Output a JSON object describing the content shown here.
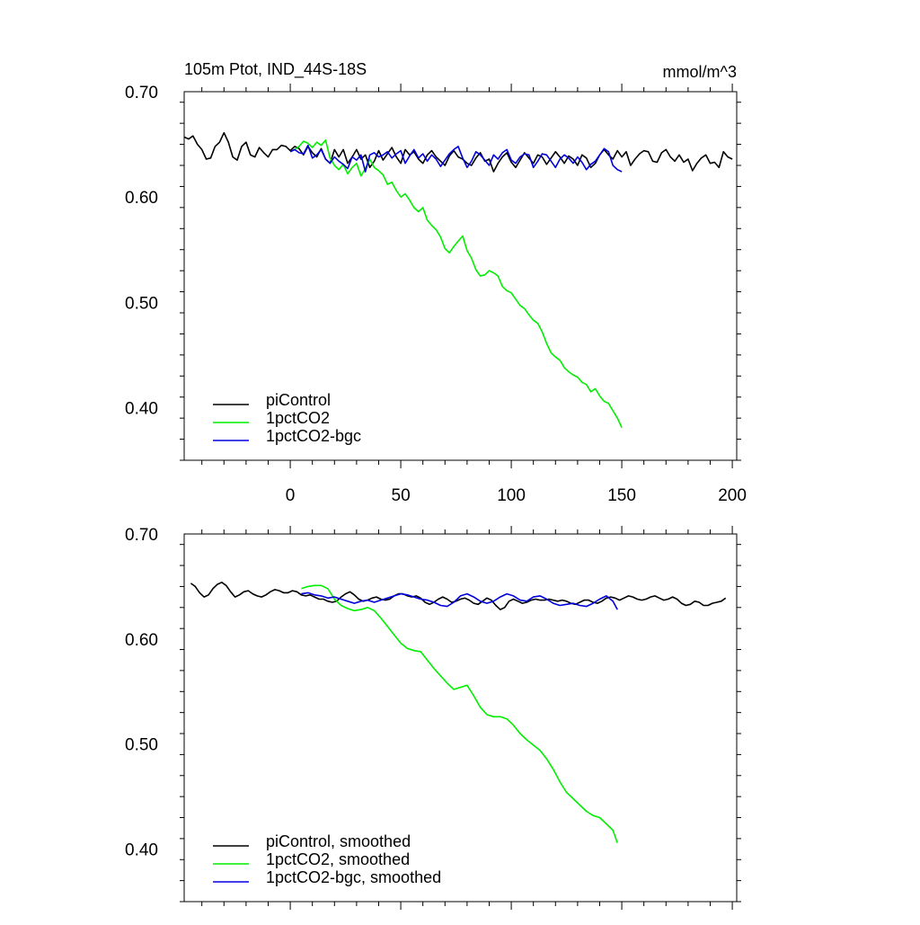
{
  "header": {
    "title": "105m Ptot, IND_44S-18S",
    "units": "mmol/m^3"
  },
  "colors": {
    "piControl": "#000000",
    "1pctCO2": "#00ee00",
    "1pctCO2-bgc": "#0000dd"
  },
  "chart_data": [
    {
      "type": "line",
      "title": "105m Ptot, IND_44S-18S",
      "units": "mmol/m^3",
      "xlim": [
        -48,
        202
      ],
      "ylim": [
        0.35,
        0.7
      ],
      "xticks": [
        0,
        50,
        100,
        150,
        200
      ],
      "xtick_labels": [
        "0",
        "50",
        "100",
        "150",
        "200"
      ],
      "yticks": [
        0.4,
        0.5,
        0.6,
        0.7
      ],
      "ytick_labels": [
        "0.40",
        "0.50",
        "0.60",
        "0.70"
      ],
      "show_x_tick_labels": true,
      "legend_placement": "bottom-left",
      "series": [
        {
          "name": "piControl",
          "color": "#000000",
          "x": [
            -48,
            -46,
            -44,
            -42,
            -40,
            -38,
            -36,
            -34,
            -32,
            -30,
            -28,
            -26,
            -24,
            -22,
            -20,
            -18,
            -16,
            -14,
            -12,
            -10,
            -8,
            -6,
            -4,
            -2,
            0,
            2,
            4,
            6,
            8,
            10,
            12,
            14,
            16,
            18,
            20,
            22,
            24,
            26,
            28,
            30,
            32,
            34,
            36,
            38,
            40,
            42,
            44,
            46,
            48,
            50,
            52,
            54,
            56,
            58,
            60,
            62,
            64,
            66,
            68,
            70,
            72,
            74,
            76,
            78,
            80,
            82,
            84,
            86,
            88,
            90,
            92,
            94,
            96,
            98,
            100,
            102,
            104,
            106,
            108,
            110,
            112,
            114,
            116,
            118,
            120,
            122,
            124,
            126,
            128,
            130,
            132,
            134,
            136,
            138,
            140,
            142,
            144,
            146,
            148,
            150,
            152,
            154,
            156,
            158,
            160,
            162,
            164,
            166,
            168,
            170,
            172,
            174,
            176,
            178,
            180,
            182,
            184,
            186,
            188,
            190,
            192,
            194,
            196,
            198,
            200
          ],
          "y": [
            0.657,
            0.655,
            0.658,
            0.65,
            0.645,
            0.636,
            0.637,
            0.648,
            0.652,
            0.661,
            0.652,
            0.638,
            0.635,
            0.648,
            0.652,
            0.64,
            0.638,
            0.647,
            0.642,
            0.638,
            0.645,
            0.645,
            0.649,
            0.648,
            0.644,
            0.648,
            0.646,
            0.64,
            0.648,
            0.642,
            0.638,
            0.646,
            0.636,
            0.632,
            0.645,
            0.638,
            0.645,
            0.632,
            0.638,
            0.645,
            0.636,
            0.64,
            0.628,
            0.634,
            0.644,
            0.635,
            0.641,
            0.647,
            0.638,
            0.632,
            0.645,
            0.64,
            0.643,
            0.636,
            0.632,
            0.64,
            0.644,
            0.638,
            0.634,
            0.63,
            0.639,
            0.644,
            0.638,
            0.636,
            0.632,
            0.63,
            0.637,
            0.642,
            0.634,
            0.636,
            0.624,
            0.632,
            0.638,
            0.642,
            0.633,
            0.628,
            0.635,
            0.642,
            0.637,
            0.632,
            0.64,
            0.638,
            0.631,
            0.637,
            0.643,
            0.638,
            0.632,
            0.639,
            0.636,
            0.63,
            0.64,
            0.637,
            0.628,
            0.632,
            0.64,
            0.645,
            0.64,
            0.636,
            0.644,
            0.638,
            0.643,
            0.63,
            0.636,
            0.641,
            0.644,
            0.643,
            0.634,
            0.633,
            0.642,
            0.645,
            0.638,
            0.634,
            0.64,
            0.633,
            0.636,
            0.625,
            0.632,
            0.637,
            0.64,
            0.632,
            0.633,
            0.628,
            0.643,
            0.638,
            0.636
          ]
        },
        {
          "name": "1pctCO2",
          "color": "#00ee00",
          "x": [
            0,
            2,
            4,
            6,
            8,
            10,
            12,
            14,
            16,
            18,
            20,
            22,
            24,
            26,
            28,
            30,
            32,
            34,
            36,
            38,
            40,
            42,
            44,
            46,
            48,
            50,
            52,
            54,
            56,
            58,
            60,
            62,
            64,
            66,
            68,
            70,
            72,
            74,
            76,
            78,
            80,
            82,
            84,
            86,
            88,
            90,
            92,
            94,
            96,
            98,
            100,
            102,
            104,
            106,
            108,
            110,
            112,
            114,
            116,
            118,
            120,
            122,
            124,
            126,
            128,
            130,
            132,
            134,
            136,
            138,
            140,
            142,
            144,
            146,
            148,
            150
          ],
          "y": [
            0.643,
            0.645,
            0.648,
            0.653,
            0.651,
            0.647,
            0.652,
            0.649,
            0.654,
            0.637,
            0.63,
            0.626,
            0.631,
            0.622,
            0.628,
            0.632,
            0.62,
            0.627,
            0.636,
            0.628,
            0.625,
            0.621,
            0.612,
            0.614,
            0.606,
            0.6,
            0.603,
            0.597,
            0.59,
            0.586,
            0.59,
            0.578,
            0.573,
            0.569,
            0.562,
            0.551,
            0.547,
            0.553,
            0.558,
            0.563,
            0.549,
            0.542,
            0.531,
            0.525,
            0.526,
            0.53,
            0.528,
            0.525,
            0.515,
            0.511,
            0.509,
            0.503,
            0.497,
            0.494,
            0.488,
            0.483,
            0.48,
            0.472,
            0.461,
            0.452,
            0.448,
            0.445,
            0.438,
            0.434,
            0.431,
            0.429,
            0.424,
            0.422,
            0.415,
            0.418,
            0.411,
            0.406,
            0.404,
            0.397,
            0.39,
            0.381
          ]
        },
        {
          "name": "1pctCO2-bgc",
          "color": "#0000dd",
          "x": [
            0,
            2,
            4,
            6,
            8,
            10,
            12,
            14,
            16,
            18,
            20,
            22,
            24,
            26,
            28,
            30,
            32,
            34,
            36,
            38,
            40,
            42,
            44,
            46,
            48,
            50,
            52,
            54,
            56,
            58,
            60,
            62,
            64,
            66,
            68,
            70,
            72,
            74,
            76,
            78,
            80,
            82,
            84,
            86,
            88,
            90,
            92,
            94,
            96,
            98,
            100,
            102,
            104,
            106,
            108,
            110,
            112,
            114,
            116,
            118,
            120,
            122,
            124,
            126,
            128,
            130,
            132,
            134,
            136,
            138,
            140,
            142,
            144,
            146,
            148,
            150
          ],
          "y": [
            0.643,
            0.645,
            0.642,
            0.641,
            0.649,
            0.637,
            0.64,
            0.645,
            0.636,
            0.632,
            0.638,
            0.634,
            0.631,
            0.627,
            0.638,
            0.635,
            0.64,
            0.624,
            0.64,
            0.642,
            0.638,
            0.64,
            0.643,
            0.637,
            0.641,
            0.644,
            0.632,
            0.639,
            0.645,
            0.637,
            0.641,
            0.634,
            0.64,
            0.636,
            0.629,
            0.635,
            0.641,
            0.645,
            0.648,
            0.637,
            0.628,
            0.634,
            0.643,
            0.64,
            0.635,
            0.63,
            0.64,
            0.636,
            0.642,
            0.645,
            0.635,
            0.632,
            0.638,
            0.641,
            0.64,
            0.628,
            0.634,
            0.641,
            0.64,
            0.634,
            0.628,
            0.636,
            0.64,
            0.637,
            0.632,
            0.638,
            0.633,
            0.626,
            0.631,
            0.634,
            0.64,
            0.646,
            0.643,
            0.63,
            0.626,
            0.624
          ]
        }
      ]
    },
    {
      "type": "line",
      "title": "",
      "units": "",
      "xlim": [
        -48,
        202
      ],
      "ylim": [
        0.35,
        0.7
      ],
      "xticks": [
        0,
        50,
        100,
        150,
        200
      ],
      "xtick_labels": [],
      "yticks": [
        0.4,
        0.5,
        0.6,
        0.7
      ],
      "ytick_labels": [
        "0.40",
        "0.50",
        "0.60",
        "0.70"
      ],
      "show_x_tick_labels": false,
      "legend_placement": "bottom-left",
      "series": [
        {
          "name": "piControl, smoothed",
          "color": "#000000",
          "x": [
            -45,
            -43,
            -41,
            -39,
            -37,
            -35,
            -33,
            -31,
            -29,
            -27,
            -25,
            -23,
            -21,
            -19,
            -17,
            -15,
            -13,
            -11,
            -9,
            -7,
            -5,
            -3,
            -1,
            1,
            3,
            5,
            7,
            9,
            11,
            13,
            15,
            17,
            19,
            21,
            23,
            25,
            27,
            29,
            31,
            33,
            35,
            37,
            39,
            41,
            43,
            45,
            47,
            49,
            51,
            53,
            55,
            57,
            59,
            61,
            63,
            65,
            67,
            69,
            71,
            73,
            75,
            77,
            79,
            81,
            83,
            85,
            87,
            89,
            91,
            93,
            95,
            97,
            99,
            101,
            103,
            105,
            107,
            109,
            111,
            113,
            115,
            117,
            119,
            121,
            123,
            125,
            127,
            129,
            131,
            133,
            135,
            137,
            139,
            141,
            143,
            145,
            147,
            149,
            151,
            153,
            155,
            157,
            159,
            161,
            163,
            165,
            167,
            169,
            171,
            173,
            175,
            177,
            179,
            181,
            183,
            185,
            187,
            189,
            191,
            193,
            195,
            197
          ],
          "y": [
            0.653,
            0.65,
            0.644,
            0.64,
            0.642,
            0.648,
            0.652,
            0.654,
            0.651,
            0.645,
            0.64,
            0.642,
            0.645,
            0.646,
            0.643,
            0.641,
            0.64,
            0.642,
            0.645,
            0.647,
            0.646,
            0.644,
            0.644,
            0.646,
            0.645,
            0.642,
            0.641,
            0.642,
            0.64,
            0.638,
            0.638,
            0.636,
            0.635,
            0.636,
            0.64,
            0.643,
            0.645,
            0.642,
            0.638,
            0.636,
            0.637,
            0.639,
            0.64,
            0.638,
            0.637,
            0.638,
            0.641,
            0.643,
            0.643,
            0.641,
            0.64,
            0.641,
            0.639,
            0.635,
            0.633,
            0.635,
            0.638,
            0.64,
            0.638,
            0.635,
            0.636,
            0.638,
            0.639,
            0.637,
            0.634,
            0.633,
            0.636,
            0.639,
            0.637,
            0.632,
            0.628,
            0.63,
            0.636,
            0.638,
            0.636,
            0.634,
            0.635,
            0.637,
            0.638,
            0.637,
            0.637,
            0.638,
            0.637,
            0.636,
            0.637,
            0.636,
            0.634,
            0.633,
            0.635,
            0.637,
            0.637,
            0.635,
            0.634,
            0.636,
            0.639,
            0.64,
            0.639,
            0.637,
            0.639,
            0.641,
            0.64,
            0.638,
            0.637,
            0.638,
            0.64,
            0.641,
            0.639,
            0.637,
            0.638,
            0.64,
            0.638,
            0.634,
            0.632,
            0.633,
            0.636,
            0.635,
            0.632,
            0.632,
            0.634,
            0.635,
            0.636,
            0.639
          ]
        },
        {
          "name": "1pctCO2, smoothed",
          "color": "#00ee00",
          "x": [
            5,
            8,
            11,
            14,
            17,
            20,
            23,
            26,
            29,
            32,
            35,
            38,
            41,
            44,
            47,
            50,
            53,
            56,
            59,
            62,
            65,
            68,
            71,
            74,
            77,
            80,
            83,
            86,
            89,
            92,
            95,
            98,
            101,
            104,
            107,
            110,
            113,
            116,
            119,
            122,
            125,
            128,
            131,
            134,
            137,
            140,
            143,
            146,
            148
          ],
          "y": [
            0.648,
            0.65,
            0.651,
            0.651,
            0.648,
            0.638,
            0.632,
            0.629,
            0.627,
            0.628,
            0.63,
            0.627,
            0.62,
            0.612,
            0.604,
            0.596,
            0.591,
            0.589,
            0.588,
            0.58,
            0.572,
            0.565,
            0.558,
            0.552,
            0.554,
            0.556,
            0.546,
            0.535,
            0.528,
            0.526,
            0.526,
            0.524,
            0.518,
            0.51,
            0.504,
            0.499,
            0.494,
            0.486,
            0.476,
            0.464,
            0.454,
            0.448,
            0.442,
            0.436,
            0.432,
            0.43,
            0.424,
            0.418,
            0.406
          ]
        },
        {
          "name": "1pctCO2-bgc, smoothed",
          "color": "#0000dd",
          "x": [
            5,
            8,
            11,
            14,
            17,
            20,
            23,
            26,
            29,
            32,
            35,
            38,
            41,
            44,
            47,
            50,
            53,
            56,
            59,
            62,
            65,
            68,
            71,
            74,
            77,
            80,
            83,
            86,
            89,
            92,
            95,
            98,
            101,
            104,
            107,
            110,
            113,
            116,
            119,
            122,
            125,
            128,
            131,
            134,
            137,
            140,
            143,
            146,
            148
          ],
          "y": [
            0.643,
            0.644,
            0.642,
            0.641,
            0.639,
            0.64,
            0.638,
            0.636,
            0.634,
            0.636,
            0.637,
            0.635,
            0.637,
            0.639,
            0.641,
            0.643,
            0.642,
            0.64,
            0.638,
            0.637,
            0.635,
            0.632,
            0.631,
            0.635,
            0.641,
            0.643,
            0.64,
            0.636,
            0.634,
            0.636,
            0.64,
            0.643,
            0.641,
            0.637,
            0.636,
            0.64,
            0.641,
            0.638,
            0.634,
            0.632,
            0.633,
            0.634,
            0.632,
            0.631,
            0.634,
            0.638,
            0.641,
            0.636,
            0.628
          ]
        }
      ]
    }
  ]
}
